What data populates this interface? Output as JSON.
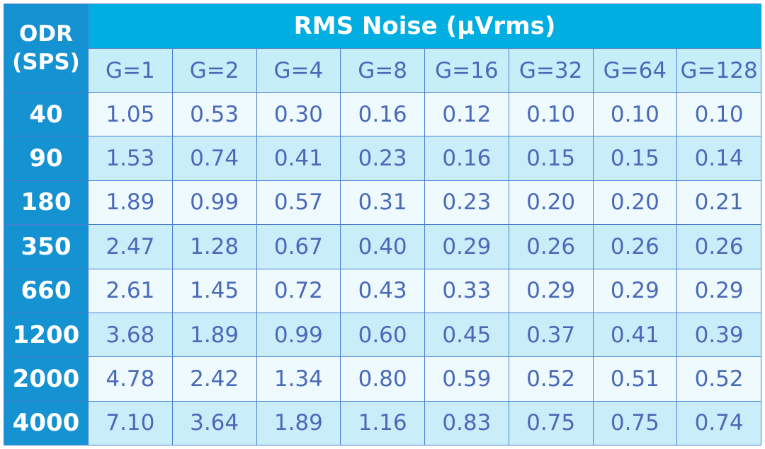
{
  "table": {
    "corner": "ODR (SPS)",
    "title": "RMS Noise (μVrms)",
    "columns": [
      "G=1",
      "G=2",
      "G=4",
      "G=8",
      "G=16",
      "G=32",
      "G=64",
      "G=128"
    ],
    "rows": [
      {
        "label": "40",
        "cells": [
          "1.05",
          "0.53",
          "0.30",
          "0.16",
          "0.12",
          "0.10",
          "0.10",
          "0.10"
        ]
      },
      {
        "label": "90",
        "cells": [
          "1.53",
          "0.74",
          "0.41",
          "0.23",
          "0.16",
          "0.15",
          "0.15",
          "0.14"
        ]
      },
      {
        "label": "180",
        "cells": [
          "1.89",
          "0.99",
          "0.57",
          "0.31",
          "0.23",
          "0.20",
          "0.20",
          "0.21"
        ]
      },
      {
        "label": "350",
        "cells": [
          "2.47",
          "1.28",
          "0.67",
          "0.40",
          "0.29",
          "0.26",
          "0.26",
          "0.26"
        ]
      },
      {
        "label": "660",
        "cells": [
          "2.61",
          "1.45",
          "0.72",
          "0.43",
          "0.33",
          "0.29",
          "0.29",
          "0.29"
        ]
      },
      {
        "label": "1200",
        "cells": [
          "3.68",
          "1.89",
          "0.99",
          "0.60",
          "0.45",
          "0.37",
          "0.41",
          "0.39"
        ]
      },
      {
        "label": "2000",
        "cells": [
          "4.78",
          "2.42",
          "1.34",
          "0.80",
          "0.59",
          "0.52",
          "0.51",
          "0.52"
        ]
      },
      {
        "label": "4000",
        "cells": [
          "7.10",
          "3.64",
          "1.89",
          "1.16",
          "0.83",
          "0.75",
          "0.75",
          "0.74"
        ]
      }
    ]
  }
}
